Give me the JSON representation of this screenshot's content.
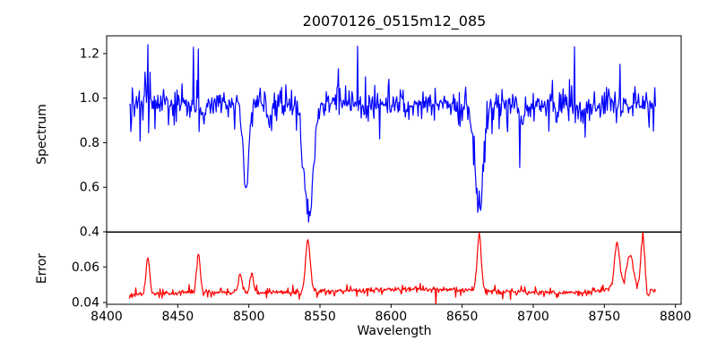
{
  "figure": {
    "background": "#ffffff",
    "text_color": "#000000"
  },
  "chart_data": {
    "type": "line",
    "title": "20070126_0515m12_085",
    "legend": "none",
    "grid": false,
    "sampling": {
      "start": 8416,
      "end": 8786,
      "step": 0.5
    },
    "x": {
      "label": "Wavelength",
      "lim": [
        8400,
        8804
      ],
      "ticks": {
        "values": [
          8400,
          8450,
          8500,
          8550,
          8600,
          8650,
          8700,
          8750,
          8800
        ],
        "labels": [
          "8400",
          "8450",
          "8500",
          "8550",
          "8600",
          "8650",
          "8700",
          "8750",
          "8800"
        ]
      }
    },
    "panels": [
      {
        "name": "spectrum",
        "ylabel": "Spectrum",
        "ylim": [
          0.4,
          1.28
        ],
        "yticks": {
          "values": [
            0.4,
            0.6,
            0.8,
            1.0,
            1.2
          ],
          "labels": [
            "0.4",
            "0.6",
            "0.8",
            "1.0",
            "1.2"
          ]
        },
        "series": {
          "color": "#0000ff",
          "seed": 20070126,
          "baseline": 0.972,
          "noise_sigma": 0.026,
          "absorption_lines": [
            {
              "center": 8498.0,
              "min": 0.615,
              "sigma": 2.0
            },
            {
              "center": 8542.1,
              "min": 0.45,
              "sigma": 3.2
            },
            {
              "center": 8662.1,
              "min": 0.5,
              "sigma": 3.0
            },
            {
              "center": 8468.0,
              "min": 0.89,
              "sigma": 1.2
            },
            {
              "center": 8514.0,
              "min": 0.88,
              "sigma": 1.4
            },
            {
              "center": 8582.0,
              "min": 0.92,
              "sigma": 1.2
            },
            {
              "center": 8611.0,
              "min": 0.91,
              "sigma": 1.3
            },
            {
              "center": 8648.0,
              "min": 0.92,
              "sigma": 1.0
            },
            {
              "center": 8692.0,
              "min": 0.88,
              "sigma": 1.3
            },
            {
              "center": 8717.0,
              "min": 0.89,
              "sigma": 1.2
            },
            {
              "center": 8736.0,
              "min": 0.92,
              "sigma": 1.0
            }
          ],
          "spikes": [
            {
              "center": 8417.0,
              "peak": 0.85
            },
            {
              "center": 8429.0,
              "peak": 1.24,
              "after": 0.845
            },
            {
              "center": 8464.5,
              "peak": 1.22,
              "after": 0.85
            },
            {
              "center": 8729.0,
              "peak": 1.23,
              "after": 0.89
            }
          ]
        }
      },
      {
        "name": "error",
        "ylabel": "Error",
        "ylim": [
          0.039,
          0.0795
        ],
        "yticks": {
          "values": [
            0.04,
            0.06
          ],
          "labels": [
            "0.04",
            "0.06"
          ]
        },
        "series": {
          "color": "#ff0000",
          "seed": 515,
          "baseline": 0.0455,
          "noise_sigma": 0.0007,
          "bumps": [
            {
              "center": 8429.0,
              "peak": 0.0655,
              "sigma": 1.3
            },
            {
              "center": 8464.5,
              "peak": 0.067,
              "sigma": 1.3
            },
            {
              "center": 8494.0,
              "peak": 0.0555,
              "sigma": 1.4
            },
            {
              "center": 8502.0,
              "peak": 0.0565,
              "sigma": 1.2
            },
            {
              "center": 8541.5,
              "peak": 0.075,
              "sigma": 1.6
            },
            {
              "center": 8662.0,
              "peak": 0.0775,
              "sigma": 1.4
            },
            {
              "center": 8759.0,
              "peak": 0.0695,
              "sigma": 1.8
            },
            {
              "center": 8768.0,
              "peak": 0.0625,
              "sigma": 2.2
            },
            {
              "center": 8777.0,
              "peak": 0.076,
              "sigma": 1.3
            },
            {
              "center": 8615.0,
              "peak": 0.0475,
              "sigma": 45
            },
            {
              "center": 8765.0,
              "peak": 0.0495,
              "sigma": 12
            },
            {
              "center": 8420.0,
              "peak": 0.0445,
              "sigma": 15
            },
            {
              "center": 8780.5,
              "peak": 0.0415,
              "sigma": 1.0
            }
          ]
        }
      }
    ]
  }
}
